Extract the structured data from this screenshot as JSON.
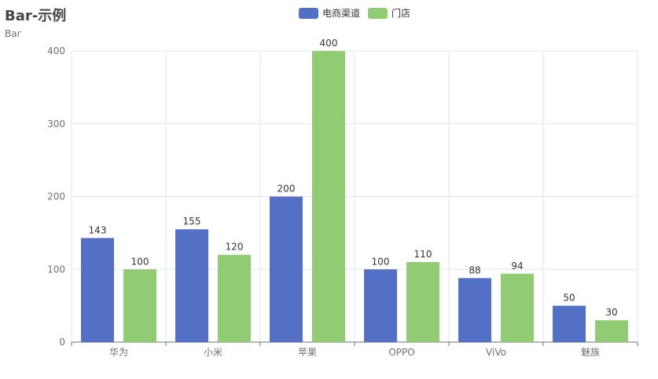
{
  "title": "Bar-示例",
  "subtitle": "Bar",
  "colors": {
    "series1": "#5470c6",
    "series2": "#91cc75"
  },
  "chart_data": {
    "type": "bar",
    "title": "Bar-示例",
    "subtitle": "Bar",
    "categories": [
      "华为",
      "小米",
      "苹果",
      "OPPO",
      "ViVo",
      "魅族"
    ],
    "series": [
      {
        "name": "电商渠道",
        "values": [
          143,
          155,
          200,
          100,
          88,
          50
        ]
      },
      {
        "name": "门店",
        "values": [
          100,
          120,
          400,
          110,
          94,
          30
        ]
      }
    ],
    "ylim": [
      0,
      400
    ],
    "yticks": [
      0,
      100,
      200,
      300,
      400
    ],
    "grid": true,
    "legend_position": "top-center"
  }
}
